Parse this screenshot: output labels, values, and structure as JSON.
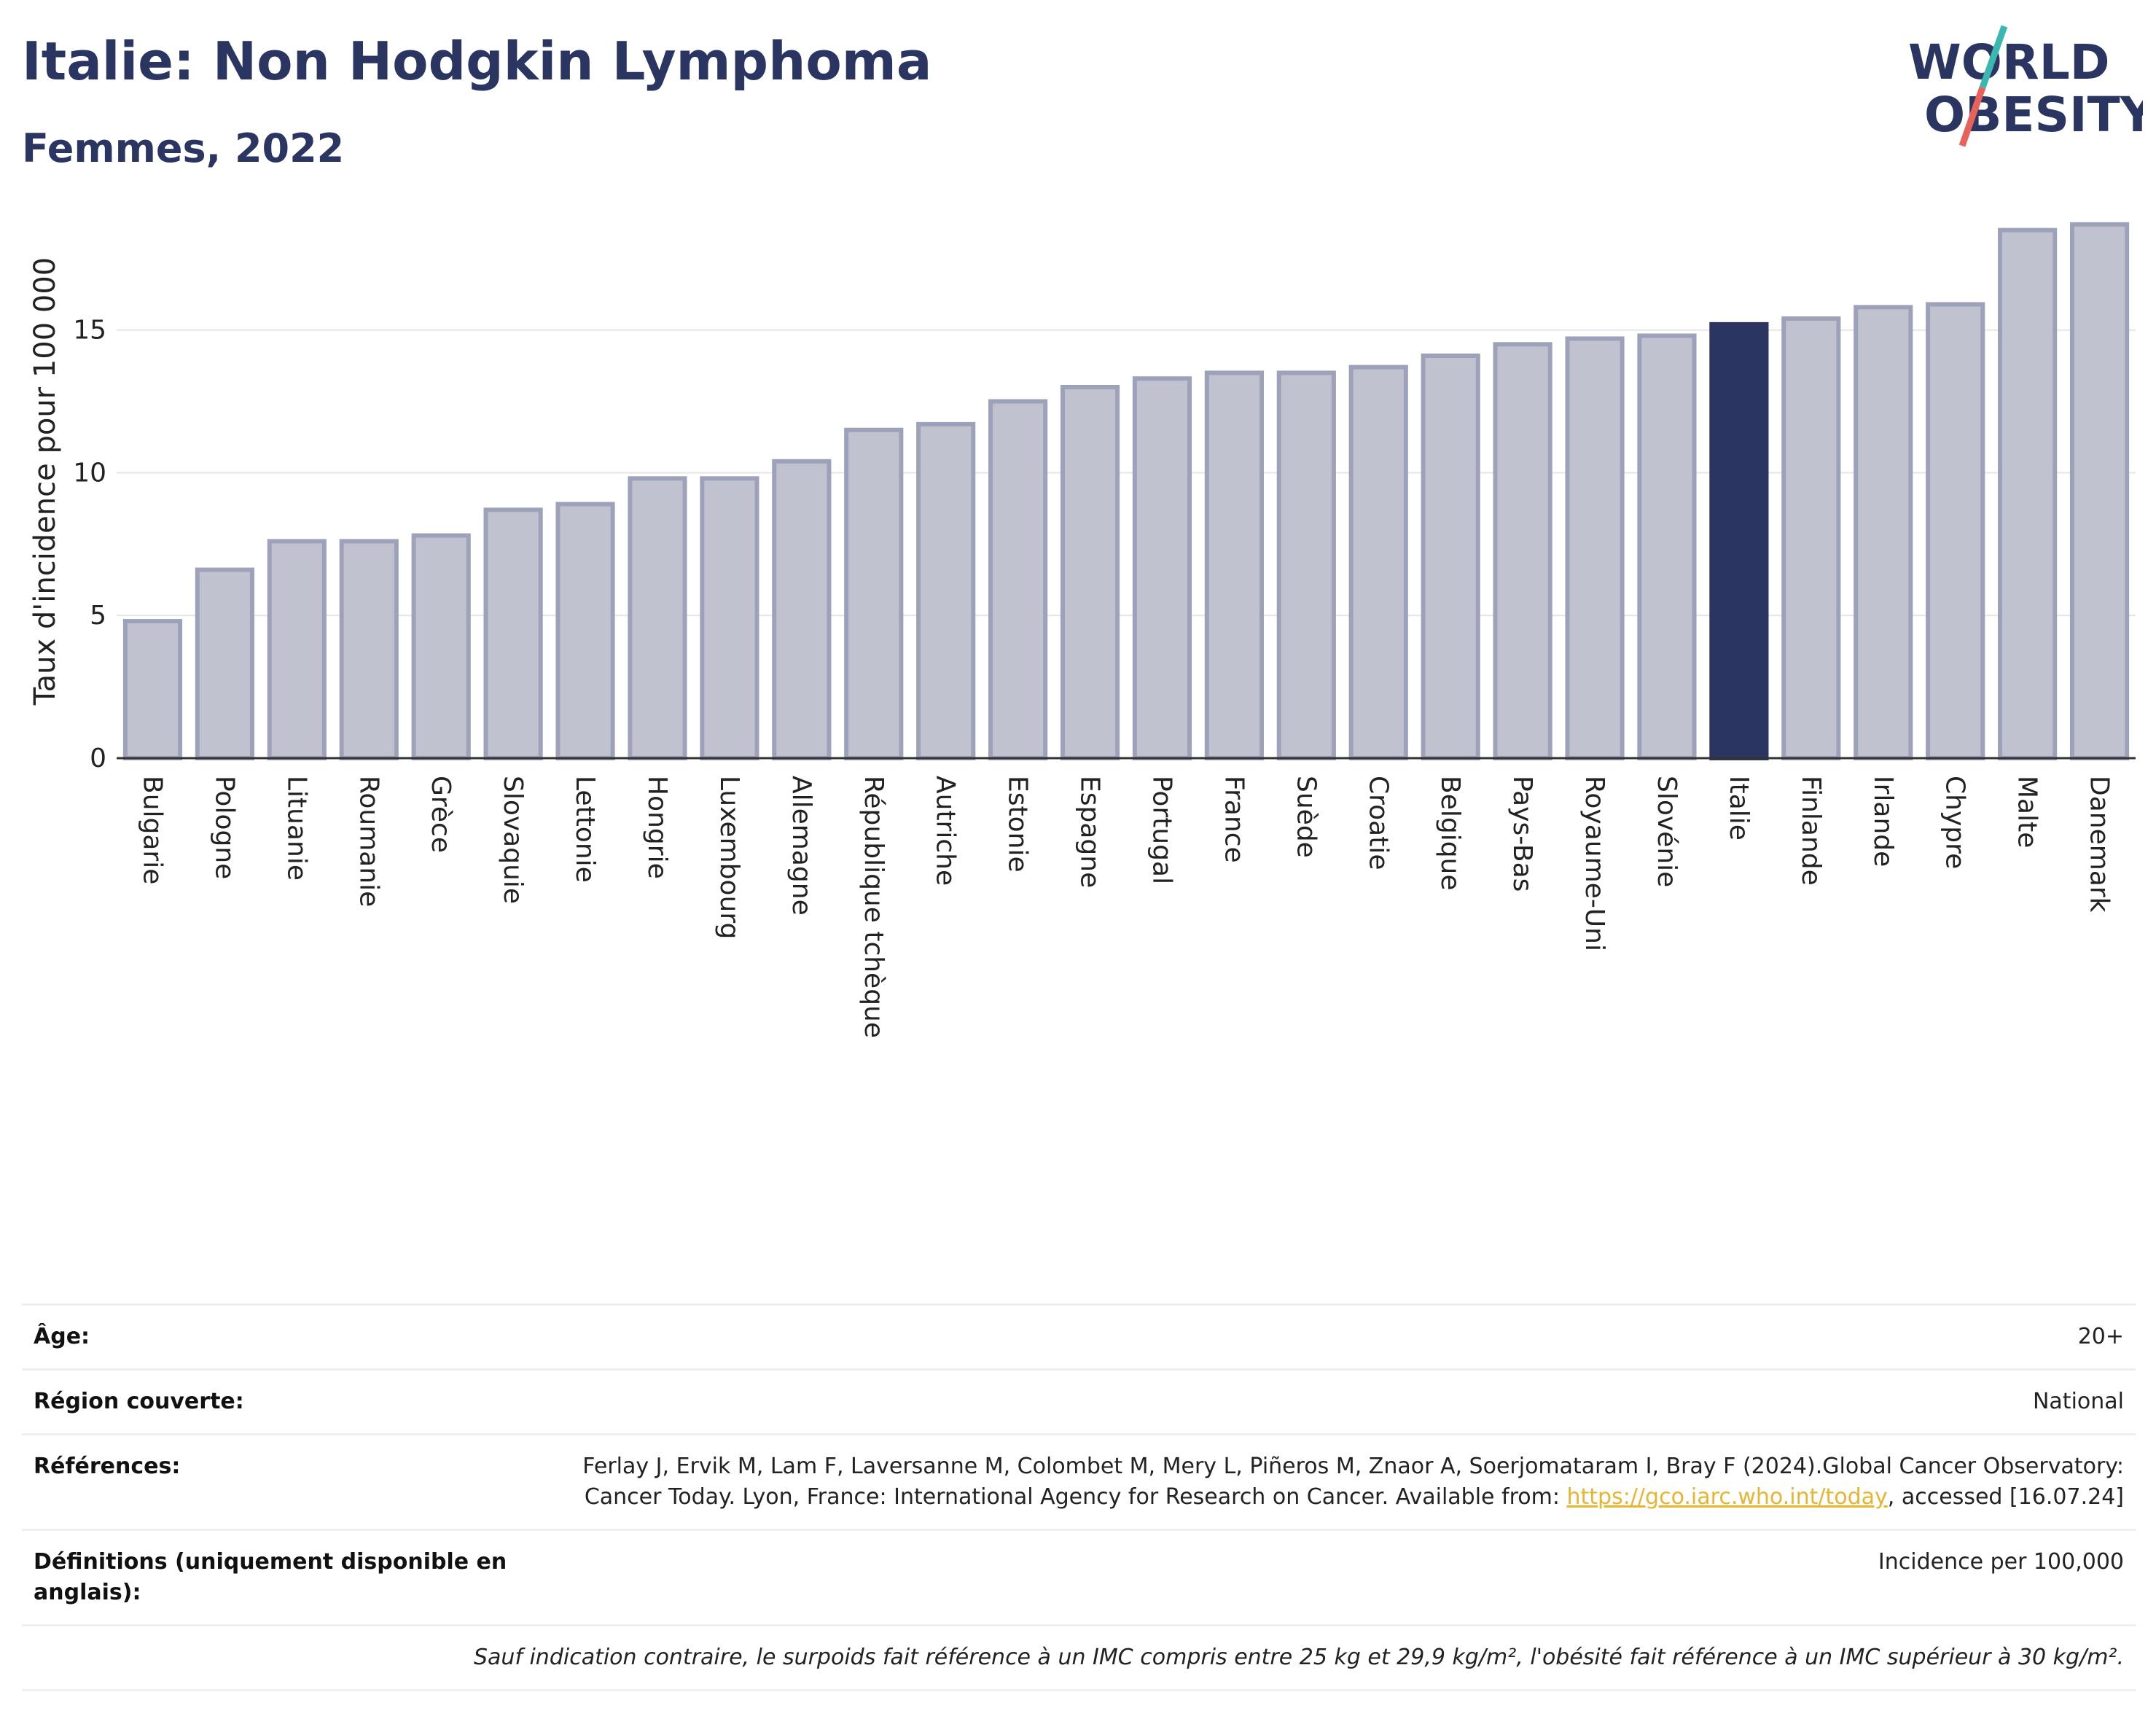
{
  "header": {
    "title": "Italie: Non Hodgkin Lymphoma",
    "subtitle": "Femmes, 2022"
  },
  "logo": {
    "line1": "WORLD",
    "line2": "OBESITY",
    "slash_color_top": "#3ab7b0",
    "slash_color_bottom": "#e8615a",
    "text_color": "#2b3561"
  },
  "colors": {
    "bar": "#c0c3cf",
    "bar_border": "#9da2ba",
    "highlight": "#2b3561",
    "grid": "#e6e6e6"
  },
  "chart_data": {
    "type": "bar",
    "title": "Italie: Non Hodgkin Lymphoma",
    "subtitle": "Femmes, 2022",
    "xlabel": "",
    "ylabel": "Taux d'incidence pour 100 000",
    "ylim": [
      0,
      18.9
    ],
    "yticks": [
      0,
      5,
      10,
      15
    ],
    "grid": true,
    "highlight": "Italie",
    "categories": [
      "Bulgarie",
      "Pologne",
      "Lituanie",
      "Roumanie",
      "Grèce",
      "Slovaquie",
      "Lettonie",
      "Hongrie",
      "Luxembourg",
      "Allemagne",
      "République tchèque",
      "Autriche",
      "Estonie",
      "Espagne",
      "Portugal",
      "France",
      "Suède",
      "Croatie",
      "Belgique",
      "Pays-Bas",
      "Royaume-Uni",
      "Slovénie",
      "Italie",
      "Finlande",
      "Irlande",
      "Chypre",
      "Malte",
      "Danemark"
    ],
    "values": [
      4.8,
      6.6,
      7.6,
      7.6,
      7.8,
      8.7,
      8.9,
      9.8,
      9.8,
      10.4,
      11.5,
      11.7,
      12.5,
      13.0,
      13.3,
      13.5,
      13.5,
      13.7,
      14.1,
      14.5,
      14.7,
      14.8,
      15.2,
      15.4,
      15.8,
      15.9,
      18.5,
      18.7
    ]
  },
  "meta": {
    "age_label": "Âge:",
    "age_value": "20+",
    "region_label": "Région couverte:",
    "region_value": "National",
    "ref_label": "Références:",
    "ref_text": "Ferlay J, Ervik M, Lam F, Laversanne M, Colombet M, Mery L, Piñeros M, Znaor A, Soerjomataram I, Bray F (2024).Global Cancer Observatory: Cancer Today. Lyon, France: International Agency for Research on Cancer. Available from: ",
    "ref_link": "https://gco.iarc.who.int/today",
    "ref_suffix": ", accessed [16.07.24]",
    "def_label": "Définitions (uniquement disponible en anglais):",
    "def_value": "Incidence per 100,000",
    "note": "Sauf indication contraire, le surpoids fait référence à un IMC compris entre 25 kg et 29,9 kg/m², l'obésité fait référence à un IMC supérieur à 30 kg/m²."
  }
}
